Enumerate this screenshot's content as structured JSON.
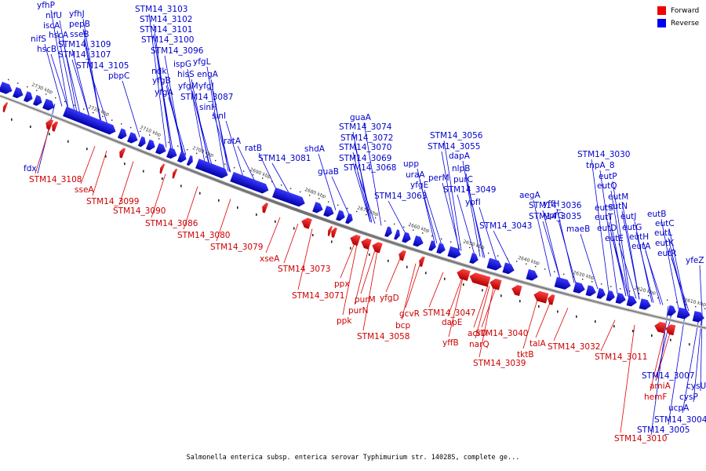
{
  "legend": [
    {
      "label": "Forward",
      "color": "#ee0000"
    },
    {
      "label": "Reverse",
      "color": "#0000ee"
    }
  ],
  "caption": "Salmonella enterica subsp. enterica serovar Typhimurium str. 14028S, complete ge...",
  "ticks": [
    "2730 kbp",
    "2720 kbp",
    "2710 kbp",
    "2700 kbp",
    "2690 kbp",
    "2680 kbp",
    "2670 kbp",
    "2660 kbp",
    "2650 kbp",
    "2640 kbp",
    "2630 kbp",
    "2620 kbp",
    "2610 kbp"
  ],
  "reverse_labels": [
    "yfhP",
    "nifU",
    "yfhJ",
    "iscA",
    "pepB",
    "nifS",
    "hscA",
    "sseB",
    "hscB",
    "STM14_3109",
    "STM14_3107",
    "STM14_3105",
    "pbpC",
    "STM14_3103",
    "STM14_3102",
    "STM14_3101",
    "STM14_3100",
    "STM14_3096",
    "ndk",
    "ispG",
    "yfgL",
    "yfgB",
    "hisS",
    "engA",
    "yfgA",
    "yfgM",
    "yfgJ",
    "STM14_3087",
    "sinH",
    "sinI",
    "ratA",
    "ratB",
    "STM14_3081",
    "shdA",
    "guaB",
    "guaA",
    "STM14_3074",
    "STM14_3072",
    "STM14_3070",
    "STM14_3069",
    "STM14_3068",
    "upp",
    "uraA",
    "yfgE",
    "STM14_3063",
    "perM",
    "STM14_3056",
    "STM14_3055",
    "dapA",
    "nlpB",
    "purC",
    "STM14_3049",
    "ypfI",
    "yffH",
    "aegA",
    "ypfG",
    "STM14_3036",
    "STM14_3035",
    "STM14_3043",
    "maeB",
    "STM14_3030",
    "tnpA_8",
    "eutP",
    "eutQ",
    "eutM",
    "eutS",
    "eutN",
    "eutT",
    "eutJ",
    "eutD",
    "eutG",
    "eutE",
    "eutH",
    "eutA",
    "eutB",
    "eutC",
    "eutL",
    "eutK",
    "eutR",
    "yfeZ",
    "fdx",
    "cysU",
    "cysP",
    "STM14_3007",
    "ucpA",
    "STM14_3004",
    "STM14_3005"
  ],
  "forward_labels": [
    "STM14_3108",
    "sseA",
    "STM14_3099",
    "STM14_3090",
    "STM14_3086",
    "STM14_3080",
    "STM14_3079",
    "xseA",
    "STM14_3073",
    "STM14_3071",
    "ppx",
    "purM",
    "purN",
    "ppk",
    "yfgD",
    "STM14_3058",
    "gcvR",
    "bcp",
    "STM14_3047",
    "dapE",
    "acrD",
    "yffB",
    "narQ",
    "STM14_3040",
    "STM14_3039",
    "talA",
    "tktB",
    "STM14_3032",
    "STM14_3011",
    "amiA",
    "hemF",
    "STM14_3010"
  ]
}
